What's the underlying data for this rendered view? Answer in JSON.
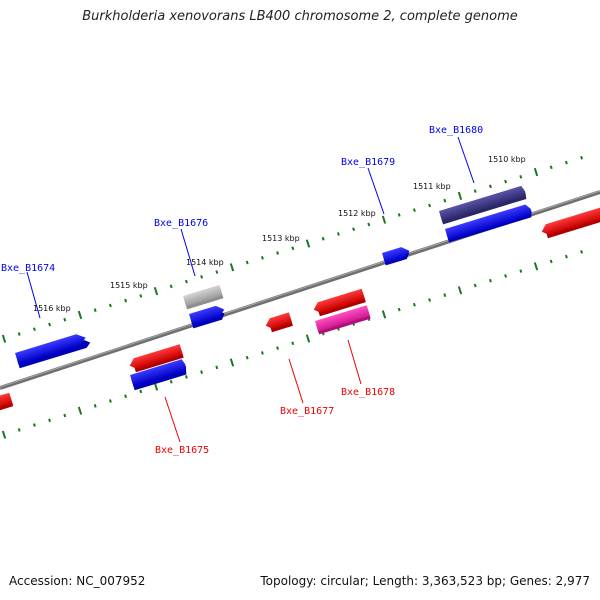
{
  "title": "Burkholderia xenovorans LB400 chromosome 2, complete genome",
  "footer": {
    "accession": "Accession: NC_007952",
    "summary": "Topology: circular; Length: 3,363,523 bp; Genes: 2,977"
  },
  "colors": {
    "forward_cds": "#0000ee",
    "reverse_cds": "#ee0000",
    "rrna": "#ee1fa0",
    "trna": "#3c3680",
    "pseudo": "#aaaaaa",
    "backbone": "#777777",
    "tick": "#1a7a1a"
  },
  "kbp_labels": [
    "1510 kbp",
    "1511 kbp",
    "1512 kbp",
    "1513 kbp",
    "1514 kbp",
    "1515 kbp",
    "1516 kbp"
  ],
  "genes": [
    {
      "name": "Bxe_B1674",
      "strand": "forward"
    },
    {
      "name": "Bxe_B1675",
      "strand": "reverse"
    },
    {
      "name": "Bxe_B1676",
      "strand": "forward"
    },
    {
      "name": "Bxe_B1677",
      "strand": "reverse"
    },
    {
      "name": "Bxe_B1678",
      "strand": "reverse"
    },
    {
      "name": "Bxe_B1679",
      "strand": "forward"
    },
    {
      "name": "Bxe_B1680",
      "strand": "forward"
    }
  ]
}
